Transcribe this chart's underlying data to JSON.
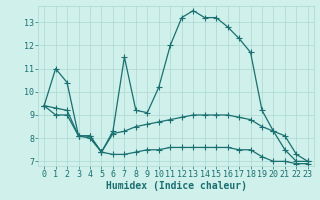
{
  "xlabel": "Humidex (Indice chaleur)",
  "x": [
    0,
    1,
    2,
    3,
    4,
    5,
    6,
    7,
    8,
    9,
    10,
    11,
    12,
    13,
    14,
    15,
    16,
    17,
    18,
    19,
    20,
    21,
    22,
    23
  ],
  "line1": [
    9.4,
    11.0,
    10.4,
    8.1,
    8.1,
    7.4,
    8.3,
    11.5,
    9.2,
    9.1,
    10.2,
    12.0,
    13.2,
    13.5,
    13.2,
    13.2,
    12.8,
    12.3,
    11.7,
    9.2,
    8.3,
    7.5,
    7.0,
    7.0
  ],
  "line2": [
    9.4,
    9.3,
    9.2,
    8.1,
    8.0,
    7.4,
    8.2,
    8.3,
    8.5,
    8.6,
    8.7,
    8.8,
    8.9,
    9.0,
    9.0,
    9.0,
    9.0,
    8.9,
    8.8,
    8.5,
    8.3,
    8.1,
    7.3,
    7.0
  ],
  "line3": [
    9.4,
    9.0,
    9.0,
    8.1,
    8.1,
    7.4,
    7.3,
    7.3,
    7.4,
    7.5,
    7.5,
    7.6,
    7.6,
    7.6,
    7.6,
    7.6,
    7.6,
    7.5,
    7.5,
    7.2,
    7.0,
    7.0,
    6.9,
    6.9
  ],
  "line_color": "#1a7070",
  "bg_color": "#cff0eb",
  "grid_color": "#aad8d0",
  "ylim": [
    6.8,
    13.7
  ],
  "yticks": [
    7,
    8,
    9,
    10,
    11,
    12,
    13
  ],
  "xlim": [
    -0.5,
    23.5
  ],
  "marker": "+",
  "markersize": 4,
  "linewidth": 0.9,
  "xlabel_fontsize": 7,
  "tick_fontsize": 6
}
